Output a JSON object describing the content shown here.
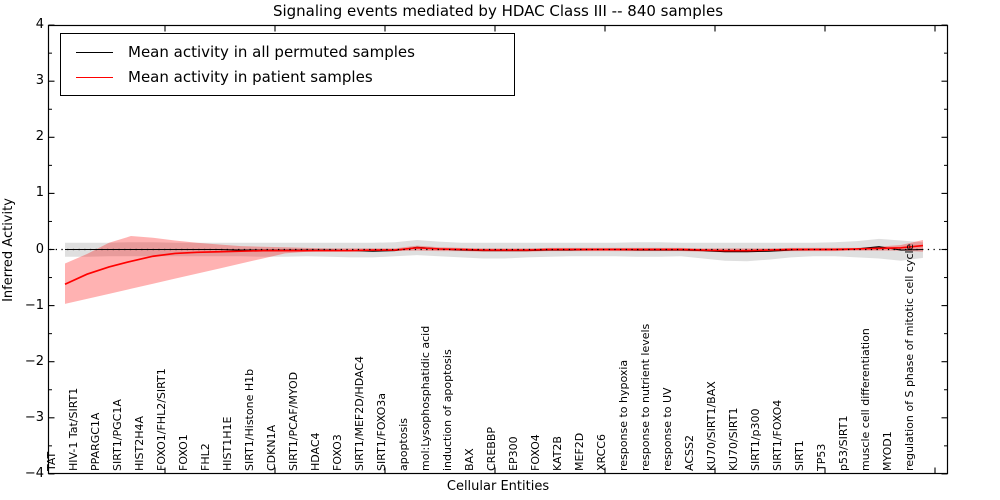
{
  "figure": {
    "title": "Signaling events mediated by HDAC Class III -- 840 samples",
    "xlabel": "Cellular Entities",
    "ylabel": "Inferred Activity"
  },
  "legend": {
    "entries": [
      {
        "label": "Mean activity in all permuted samples",
        "color": "#000000"
      },
      {
        "label": "Mean activity in patient samples",
        "color": "#ff0000"
      }
    ]
  },
  "chart_data": {
    "type": "line",
    "title": "Signaling events mediated by HDAC Class III -- 840 samples",
    "xlabel": "Cellular Entities",
    "ylabel": "Inferred Activity",
    "ylim": [
      -4,
      4
    ],
    "ytick_labels": [
      "4",
      "3",
      "2",
      "1",
      "0",
      "−1",
      "−2",
      "−3",
      "−4"
    ],
    "ytick_values": [
      4,
      3,
      2,
      1,
      0,
      -1,
      -2,
      -3,
      -4
    ],
    "grid": false,
    "legend_position": "upper left",
    "zero_line": 0,
    "categories": [
      "TAT",
      "HIV-1 Tat/SIRT1",
      "PPARGC1A",
      "SIRT1/PGC1A",
      "HIST2H4A",
      "FOXO1/FHL2/SIRT1",
      "FOXO1",
      "FHL2",
      "HIST1H1E",
      "SIRT1/Histone H1b",
      "CDKN1A",
      "SIRT1/PCAF/MYOD",
      "HDAC4",
      "FOXO3",
      "SIRT1/MEF2D/HDAC4",
      "SIRT1/FOXO3a",
      "apoptosis",
      "mol:Lysophosphatidic acid",
      "induction of apoptosis",
      "BAX",
      "CREBBP",
      "EP300",
      "FOXO4",
      "KAT2B",
      "MEF2D",
      "XRCC6",
      "response to hypoxia",
      "response to nutrient levels",
      "response to UV",
      "ACSS2",
      "KU70/SIRT1/BAX",
      "KU70/SIRT1",
      "SIRT1/p300",
      "SIRT1/FOXO4",
      "SIRT1",
      "TP53",
      "p53/SIRT1",
      "muscle cell differentiation",
      "MYOD1",
      "regulation of S phase of mitotic cell cycle"
    ],
    "series": [
      {
        "name": "Mean activity in all permuted samples",
        "color": "#000000",
        "values": [
          0.0,
          0.0,
          0.0,
          0.0,
          0.0,
          0.0,
          0.0,
          0.0,
          -0.01,
          -0.01,
          -0.01,
          -0.01,
          -0.01,
          -0.02,
          -0.03,
          -0.02,
          0.04,
          0.01,
          -0.01,
          -0.02,
          -0.02,
          -0.02,
          -0.01,
          -0.01,
          0.0,
          0.0,
          -0.01,
          -0.01,
          -0.01,
          -0.02,
          -0.04,
          -0.04,
          -0.03,
          -0.01,
          0.0,
          0.0,
          0.01,
          0.05,
          -0.01,
          0.0
        ]
      },
      {
        "name": "Mean activity in patient samples",
        "color": "#ff0000",
        "values": [
          -0.62,
          -0.44,
          -0.31,
          -0.21,
          -0.12,
          -0.07,
          -0.05,
          -0.04,
          -0.03,
          -0.02,
          -0.02,
          -0.02,
          -0.02,
          -0.02,
          -0.01,
          -0.01,
          0.03,
          0.01,
          0.0,
          -0.01,
          -0.01,
          -0.01,
          0.0,
          0.0,
          0.0,
          0.0,
          0.0,
          0.0,
          0.0,
          -0.01,
          -0.02,
          -0.02,
          -0.01,
          0.0,
          0.0,
          0.0,
          0.01,
          0.02,
          0.03,
          0.07
        ]
      }
    ],
    "bands": [
      {
        "name": "permuted-samples-range",
        "color": "#bfbfbf",
        "opacity": 0.5,
        "lower": [
          -0.13,
          -0.13,
          -0.12,
          -0.12,
          -0.12,
          -0.12,
          -0.12,
          -0.12,
          -0.12,
          -0.13,
          -0.13,
          -0.12,
          -0.13,
          -0.14,
          -0.14,
          -0.12,
          -0.1,
          -0.12,
          -0.14,
          -0.16,
          -0.16,
          -0.14,
          -0.13,
          -0.12,
          -0.12,
          -0.12,
          -0.13,
          -0.13,
          -0.12,
          -0.16,
          -0.2,
          -0.21,
          -0.18,
          -0.14,
          -0.12,
          -0.12,
          -0.14,
          -0.16,
          -0.2,
          -0.15
        ],
        "upper": [
          0.12,
          0.12,
          0.12,
          0.13,
          0.13,
          0.12,
          0.12,
          0.12,
          0.12,
          0.12,
          0.12,
          0.12,
          0.12,
          0.12,
          0.12,
          0.13,
          0.17,
          0.14,
          0.12,
          0.12,
          0.12,
          0.12,
          0.12,
          0.12,
          0.12,
          0.12,
          0.13,
          0.13,
          0.12,
          0.12,
          0.12,
          0.12,
          0.12,
          0.12,
          0.12,
          0.13,
          0.15,
          0.19,
          0.16,
          0.13
        ]
      },
      {
        "name": "patient-samples-range",
        "color": "#ff0000",
        "opacity": 0.3,
        "lower": [
          -0.97,
          -0.88,
          -0.79,
          -0.7,
          -0.61,
          -0.52,
          -0.43,
          -0.34,
          -0.25,
          -0.16,
          -0.07,
          -0.04,
          -0.03,
          -0.03,
          -0.03,
          -0.03,
          -0.02,
          -0.03,
          -0.03,
          -0.04,
          -0.04,
          -0.04,
          -0.03,
          -0.03,
          -0.03,
          -0.03,
          -0.03,
          -0.03,
          -0.03,
          -0.04,
          -0.05,
          -0.05,
          -0.04,
          -0.03,
          -0.03,
          -0.03,
          -0.02,
          -0.02,
          -0.02,
          -0.04
        ],
        "upper": [
          -0.25,
          -0.08,
          0.12,
          0.24,
          0.21,
          0.16,
          0.12,
          0.09,
          0.06,
          0.05,
          0.04,
          0.03,
          0.02,
          0.02,
          0.02,
          0.02,
          0.07,
          0.04,
          0.03,
          0.02,
          0.02,
          0.02,
          0.03,
          0.03,
          0.03,
          0.03,
          0.03,
          0.03,
          0.03,
          0.02,
          0.02,
          0.02,
          0.02,
          0.03,
          0.03,
          0.03,
          0.03,
          0.05,
          0.08,
          0.17
        ]
      }
    ]
  }
}
